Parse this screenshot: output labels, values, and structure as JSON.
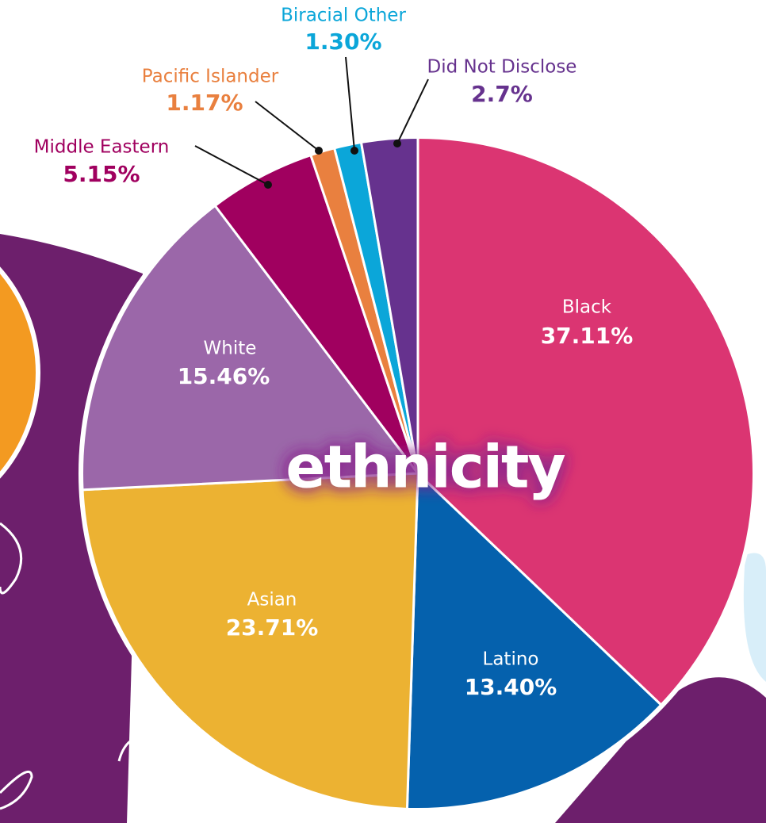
{
  "chart_data": {
    "type": "pie",
    "title": "ethnicity",
    "categories": [
      "Black",
      "Latino",
      "Asian",
      "White",
      "Middle Eastern",
      "Pacific Islander",
      "Biracial Other",
      "Did Not Disclose"
    ],
    "values": [
      37.11,
      13.4,
      23.71,
      15.46,
      5.15,
      1.17,
      1.3,
      2.7
    ],
    "value_labels": [
      "37.11%",
      "13.40%",
      "23.71%",
      "15.46%",
      "5.15%",
      "1.17%",
      "1.30%",
      "2.7%"
    ],
    "colors": [
      "#db3572",
      "#0561ad",
      "#ecb232",
      "#9b67a9",
      "#a0005f",
      "#e9803f",
      "#0ba6d9",
      "#66328e"
    ]
  }
}
